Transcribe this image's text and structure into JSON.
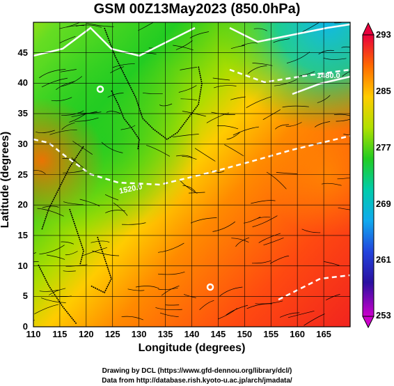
{
  "title": "GSM 00Z13May2023 (850.0hPa)",
  "x_axis": {
    "title": "Longitude (degrees)",
    "ticks": [
      "110",
      "115",
      "120",
      "125",
      "130",
      "135",
      "140",
      "145",
      "150",
      "155",
      "160",
      "165"
    ]
  },
  "y_axis": {
    "title": "Latitude  (degrees)",
    "ticks": [
      "0",
      "5",
      "10",
      "15",
      "20",
      "25",
      "30",
      "35",
      "40",
      "45"
    ]
  },
  "colorbar": {
    "labels": [
      "293",
      "285",
      "277",
      "269",
      "261",
      "253"
    ],
    "colors": [
      "#e8003c",
      "#ff6a00",
      "#ffcc00",
      "#b0e000",
      "#22cc22",
      "#00ccaa",
      "#10aaee",
      "#2244dd",
      "#2a10a0",
      "#cc00cc"
    ]
  },
  "map": {
    "lon_range": [
      110,
      170
    ],
    "lat_range": [
      0,
      50
    ],
    "contour_labels": [
      "1480.0",
      "1520.0"
    ]
  },
  "credits": {
    "line1": "Drawing by DCL (https://www.gfd-dennou.org/library/dcl/)",
    "line2": "Data from http://database.rish.kyoto-u.ac.jp/arch/jmadata/"
  }
}
